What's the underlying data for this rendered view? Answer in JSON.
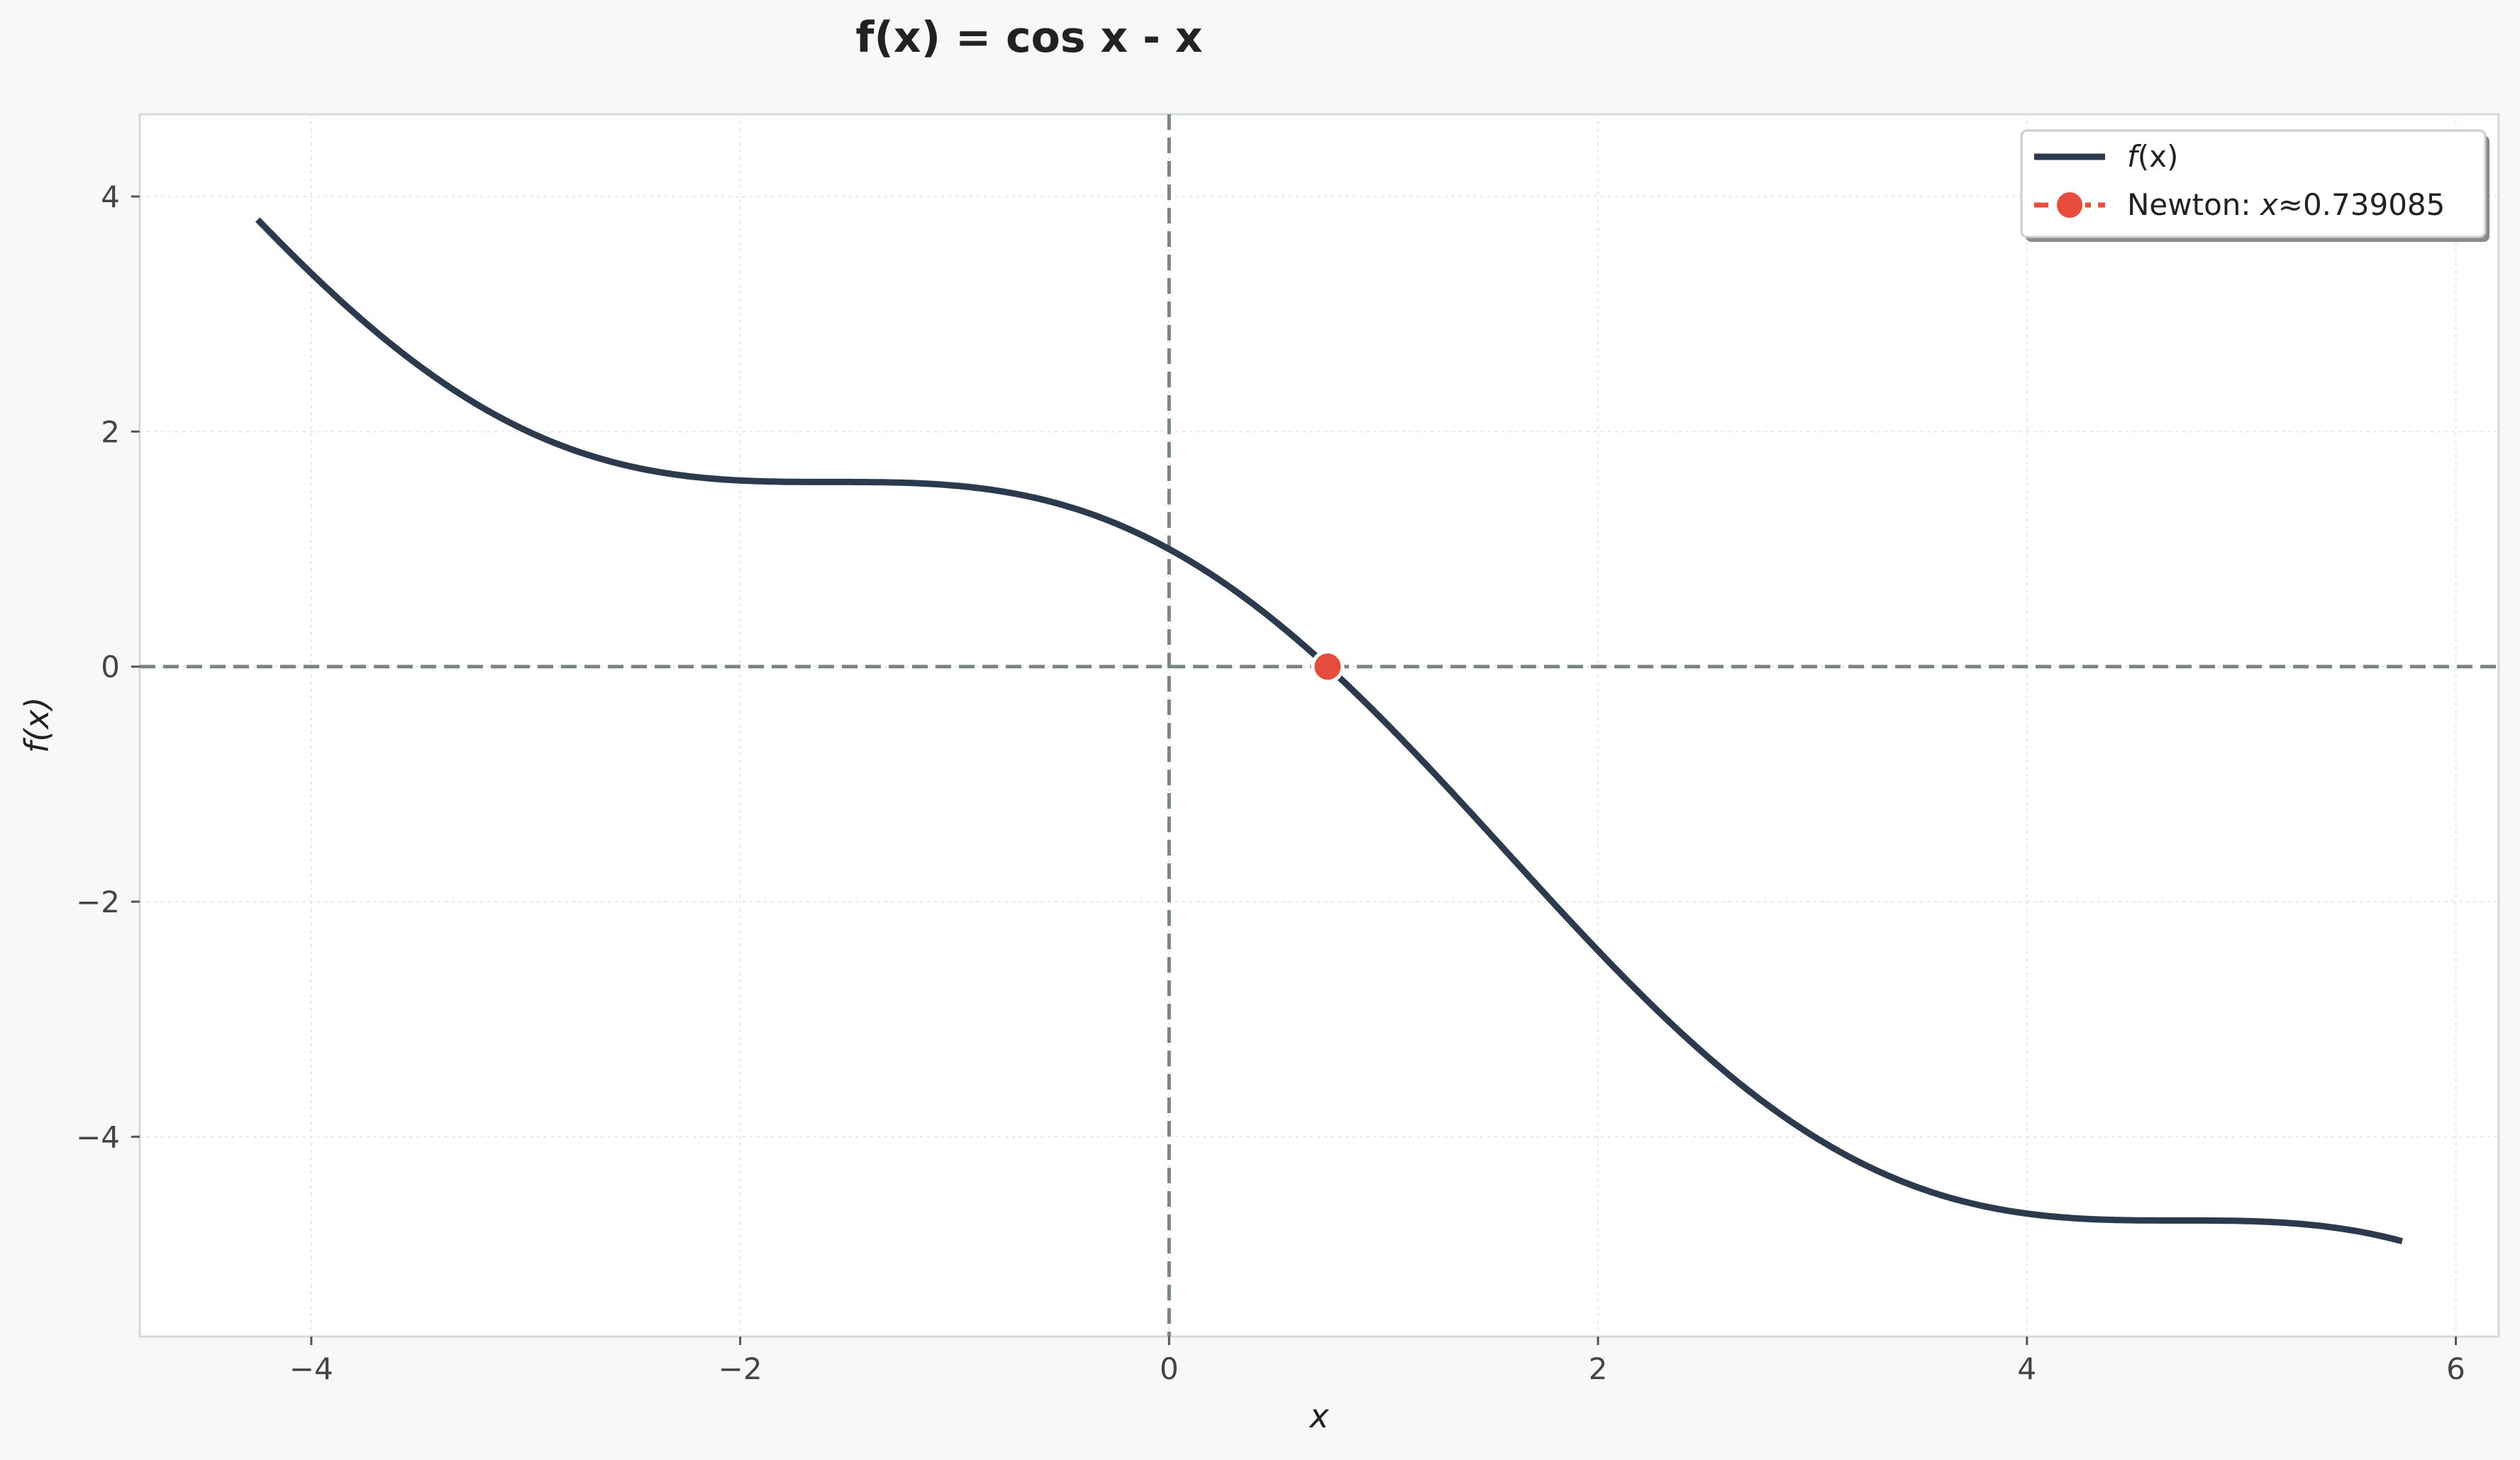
{
  "chart_data": {
    "type": "line",
    "title": "f(x) = cos x - x",
    "xlabel": "x",
    "ylabel": "f(x)",
    "xlim": [
      -4.8,
      6.2
    ],
    "ylim": [
      -5.7,
      4.7
    ],
    "x_ticks": [
      -4,
      -2,
      0,
      2,
      4,
      6
    ],
    "y_ticks": [
      -4,
      -2,
      0,
      2,
      4
    ],
    "x_tick_labels": [
      "−4",
      "−2",
      "0",
      "2",
      "4",
      "6"
    ],
    "y_tick_labels": [
      "−4",
      "−2",
      "0",
      "2",
      "4"
    ],
    "grid": true,
    "reference_lines": {
      "x": 0,
      "y": 0
    },
    "legend_position": "top-right",
    "series": [
      {
        "name": "f(x)",
        "function": "cos(x) - x",
        "x_range": [
          -4.25,
          5.75
        ],
        "color": "#2b3a4d"
      },
      {
        "name": "Newton: x≈0.739085",
        "type": "scatter",
        "x": [
          0.739085
        ],
        "y": [
          0
        ],
        "color": "#e74c3c"
      }
    ],
    "legend": [
      {
        "label_name": "f",
        "label_rest": "(x)"
      },
      {
        "label_prefix": "Newton: ",
        "label_var": "x",
        "label_value": "≈0.739085"
      }
    ]
  },
  "colors": {
    "page_background": "#f7f8fa",
    "plot_background": "#ffffff",
    "curve": "#2b3a4d",
    "root_marker": "#e74c3c",
    "reference_line": "#7a8584",
    "grid": "#e6e6e6",
    "frame": "#d5d8dc"
  }
}
